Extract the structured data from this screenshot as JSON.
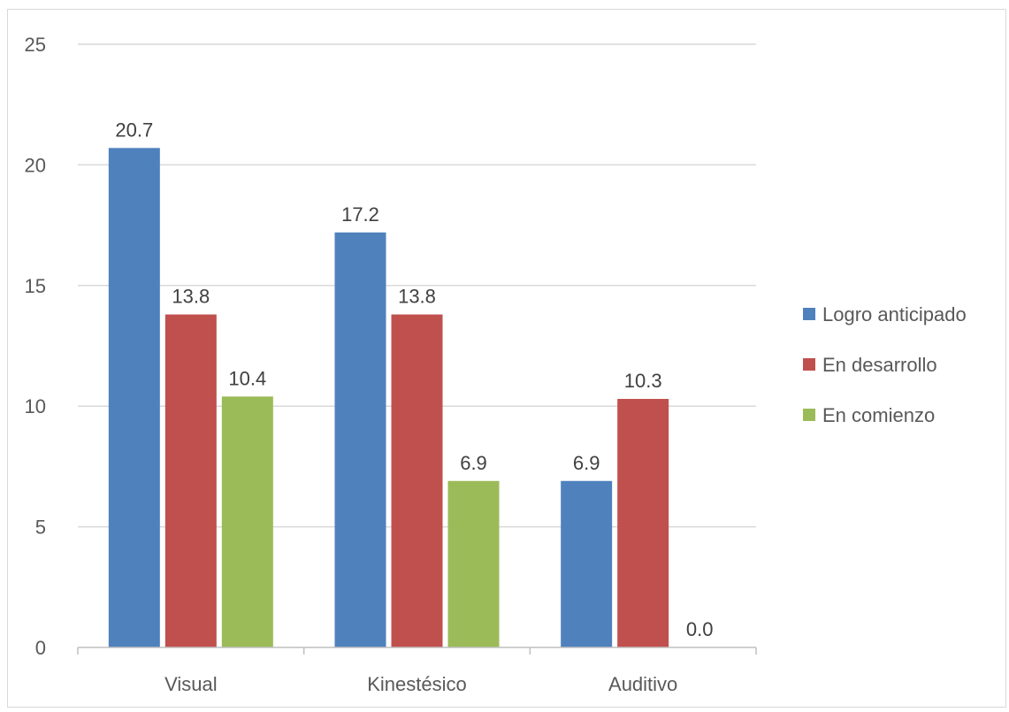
{
  "chart_data": {
    "type": "bar",
    "categories": [
      "Visual",
      "Kinestésico",
      "Auditivo"
    ],
    "series": [
      {
        "name": "Logro anticipado",
        "color": "#4f81bd",
        "values": [
          20.7,
          17.2,
          6.9
        ]
      },
      {
        "name": "En desarrollo",
        "color": "#c0504d",
        "values": [
          13.8,
          13.8,
          10.3
        ]
      },
      {
        "name": "En comienzo",
        "color": "#9bbb59",
        "values": [
          10.4,
          6.9,
          0.0
        ]
      }
    ],
    "value_labels": [
      [
        "20.7",
        "17.2",
        "6.9"
      ],
      [
        "13.8",
        "13.8",
        "10.3"
      ],
      [
        "10.4",
        "6.9",
        "0.0"
      ]
    ],
    "y_ticks": [
      "0",
      "5",
      "10",
      "15",
      "20",
      "25"
    ],
    "ylim": [
      0,
      25
    ],
    "y_step": 5,
    "grid": true,
    "legend_position": "right",
    "title": "",
    "xlabel": "",
    "ylabel": ""
  },
  "colors": {
    "gridline": "#d9d9d9",
    "axis": "#bfbfbf",
    "frame": "#d9d9d9"
  }
}
